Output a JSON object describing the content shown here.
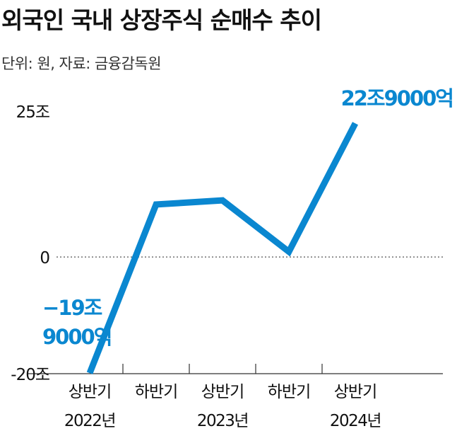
{
  "title": "외국인 국내 상장주식 순매수 추이",
  "subtitle": "단위: 원, 자료: 금융감독원",
  "colors": {
    "line": "#0a87d0",
    "label": "#0a87d0",
    "text": "#111111",
    "axis": "#333333"
  },
  "chart_data": {
    "type": "line",
    "title": "외국인 국내 상장주식 순매수 추이",
    "xlabel": "",
    "ylabel": "",
    "ylim": [
      -20,
      25
    ],
    "y_ticks": [
      {
        "value": 25,
        "label": "25조"
      },
      {
        "value": 0,
        "label": "0"
      },
      {
        "value": -20,
        "label": "-20조"
      }
    ],
    "zero_line": "dotted",
    "grid": false,
    "categories": [
      {
        "period": "상반기",
        "year": "2022년"
      },
      {
        "period": "하반기",
        "year": ""
      },
      {
        "period": "상반기",
        "year": "2023년"
      },
      {
        "period": "하반기",
        "year": ""
      },
      {
        "period": "상반기",
        "year": "2024년"
      }
    ],
    "x": [
      0,
      1,
      2,
      3,
      4,
      5
    ],
    "series": [
      {
        "values": [
          -19.9,
          9.0,
          9.7,
          0.9,
          22.9
        ]
      }
    ],
    "point_x": [
      0.5,
      1.5,
      2.5,
      3.5,
      4.5
    ],
    "annotations": [
      {
        "point": 0,
        "lines": [
          "−19조",
          "9000억"
        ]
      },
      {
        "point": 4,
        "lines": [
          "22조9000억"
        ]
      }
    ]
  }
}
